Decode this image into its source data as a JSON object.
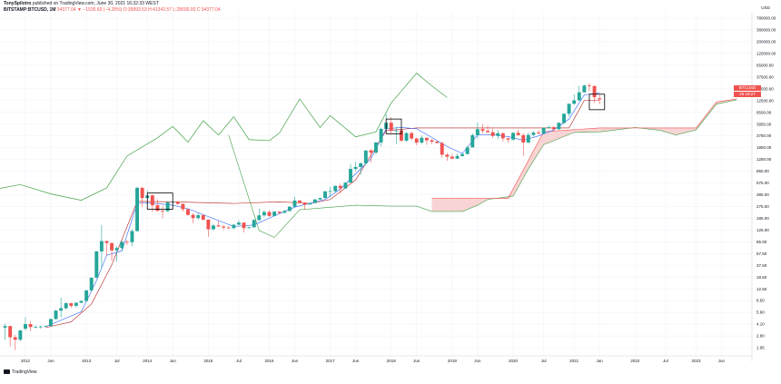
{
  "header": {
    "author": "TonySpilotro",
    "published": "published on TradingView.com, June 30, 2021 16:32:33 WEST",
    "symbol": "BITSTAMP:BTCUSD, 1M",
    "ohlc": "34377.04 ▼ −1535.69 (−4.28%) O:35893.53 H:41342.57 L:28600.00 C:34377.04"
  },
  "axis": {
    "currency": "USD",
    "y_ticks": [
      "780000.00",
      "380000.00",
      "200000.00",
      "125000.00",
      "65000.00",
      "37500.00",
      "18500.00",
      "12500.00",
      "8500.00",
      "3950.00",
      "3750.00",
      "1850.00",
      "1250.00",
      "850.00",
      "575.00",
      "395.00",
      "275.00",
      "185.00",
      "125.00",
      "85.00",
      "57.50",
      "37.50",
      "18.50",
      "12.50",
      "8.50",
      "5.90",
      "4.10",
      "2.80",
      "1.95"
    ],
    "x_ticks": [
      "2012",
      "Jun",
      "2013",
      "Jul",
      "2014",
      "Jun",
      "2015",
      "Jul",
      "2016",
      "Jun",
      "2017",
      "Jun",
      "2018",
      "Jun",
      "2019",
      "Jun",
      "2020",
      "Jul",
      "2021",
      "Jun",
      "2022",
      "Jul",
      "2023",
      "Jun"
    ]
  },
  "price_tags": [
    {
      "text": "BTCUSD 34377.04",
      "color": "#ef5350"
    },
    {
      "text": "26 19:27",
      "color": "#ef5350"
    }
  ],
  "brand": "TradingView",
  "colors": {
    "up": "#26a69a",
    "down": "#ef5350",
    "tenkan": "#2962ff",
    "kijun": "#b71c1c",
    "chikou": "#43a047",
    "span_b": "#ef5350",
    "cloud": "#f8c9c9"
  },
  "chart_data": {
    "type": "candlestick",
    "title": "",
    "scale": "log",
    "interval": "1M",
    "ylim": [
      1.6,
      1000000
    ],
    "xlim": [
      "2011-08",
      "2023-12"
    ],
    "candles": [
      [
        "2011-09",
        4.8,
        5.6,
        3.0,
        5.1
      ],
      [
        "2011-10",
        5.1,
        5.2,
        2.3,
        3.3
      ],
      [
        "2011-11",
        3.3,
        3.6,
        2.0,
        3.0
      ],
      [
        "2011-12",
        3.0,
        4.4,
        2.8,
        4.3
      ],
      [
        "2012-01",
        4.6,
        7.2,
        4.3,
        5.5
      ],
      [
        "2012-02",
        5.5,
        6.2,
        4.2,
        4.9
      ],
      [
        "2012-03",
        4.9,
        5.3,
        4.7,
        4.9
      ],
      [
        "2012-04",
        4.9,
        5.2,
        4.6,
        5.0
      ],
      [
        "2012-05",
        5.0,
        5.2,
        4.9,
        5.1
      ],
      [
        "2012-06",
        5.1,
        6.8,
        5.1,
        6.7
      ],
      [
        "2012-07",
        6.7,
        9.5,
        6.5,
        9.3
      ],
      [
        "2012-08",
        9.3,
        15.4,
        7.1,
        10.2
      ],
      [
        "2012-09",
        10.2,
        12.9,
        9.8,
        12.4
      ],
      [
        "2012-10",
        12.4,
        12.6,
        10.4,
        11.2
      ],
      [
        "2012-11",
        11.2,
        12.9,
        10.5,
        12.6
      ],
      [
        "2012-12",
        12.6,
        13.9,
        12.5,
        13.5
      ],
      [
        "2013-01",
        13.5,
        21.0,
        13.3,
        20.4
      ],
      [
        "2013-02",
        20.4,
        34.0,
        19.5,
        33.4
      ],
      [
        "2013-03",
        33.4,
        95.0,
        33.0,
        93.0
      ],
      [
        "2013-04",
        93.0,
        260,
        50,
        139
      ],
      [
        "2013-05",
        139,
        140,
        80,
        129
      ],
      [
        "2013-06",
        129,
        130,
        65,
        97
      ],
      [
        "2013-07",
        97,
        115,
        63,
        106
      ],
      [
        "2013-08",
        106,
        140,
        94,
        135
      ],
      [
        "2013-09",
        135,
        145,
        118,
        133
      ],
      [
        "2013-10",
        133,
        220,
        113,
        205
      ],
      [
        "2013-11",
        205,
        1160,
        200,
        1100
      ],
      [
        "2013-12",
        1100,
        1150,
        520,
        740
      ],
      [
        "2014-01",
        740,
        1000,
        740,
        820
      ],
      [
        "2014-02",
        820,
        850,
        430,
        560
      ],
      [
        "2014-03",
        560,
        700,
        440,
        450
      ],
      [
        "2014-04",
        450,
        550,
        340,
        445
      ],
      [
        "2014-05",
        445,
        640,
        430,
        630
      ],
      [
        "2014-06",
        630,
        680,
        550,
        640
      ],
      [
        "2014-07",
        640,
        660,
        570,
        590
      ],
      [
        "2014-08",
        590,
        600,
        440,
        480
      ],
      [
        "2014-09",
        480,
        490,
        370,
        385
      ],
      [
        "2014-10",
        385,
        410,
        280,
        340
      ],
      [
        "2014-11",
        340,
        420,
        320,
        380
      ],
      [
        "2014-12",
        380,
        390,
        310,
        320
      ],
      [
        "2015-01",
        320,
        320,
        165,
        220
      ],
      [
        "2015-02",
        220,
        270,
        210,
        255
      ],
      [
        "2015-03",
        255,
        300,
        240,
        245
      ],
      [
        "2015-04",
        245,
        260,
        215,
        235
      ],
      [
        "2015-05",
        235,
        250,
        225,
        230
      ],
      [
        "2015-06",
        230,
        265,
        220,
        263
      ],
      [
        "2015-07",
        263,
        315,
        255,
        285
      ],
      [
        "2015-08",
        285,
        290,
        195,
        230
      ],
      [
        "2015-09",
        230,
        245,
        225,
        237
      ],
      [
        "2015-10",
        237,
        330,
        236,
        315
      ],
      [
        "2015-11",
        315,
        495,
        305,
        378
      ],
      [
        "2015-12",
        378,
        465,
        350,
        430
      ],
      [
        "2016-01",
        430,
        460,
        355,
        370
      ],
      [
        "2016-02",
        370,
        445,
        365,
        437
      ],
      [
        "2016-03",
        437,
        440,
        400,
        416
      ],
      [
        "2016-04",
        416,
        470,
        415,
        448
      ],
      [
        "2016-05",
        448,
        540,
        440,
        530
      ],
      [
        "2016-06",
        530,
        780,
        520,
        673
      ],
      [
        "2016-07",
        673,
        680,
        600,
        624
      ],
      [
        "2016-08",
        624,
        615,
        470,
        575
      ],
      [
        "2016-09",
        575,
        615,
        590,
        608
      ],
      [
        "2016-10",
        608,
        720,
        605,
        700
      ],
      [
        "2016-11",
        700,
        750,
        695,
        740
      ],
      [
        "2016-12",
        740,
        975,
        740,
        960
      ],
      [
        "2017-01",
        960,
        1150,
        750,
        970
      ],
      [
        "2017-02",
        970,
        1200,
        915,
        1190
      ],
      [
        "2017-03",
        1190,
        1300,
        890,
        1080
      ],
      [
        "2017-04",
        1080,
        1360,
        1060,
        1350
      ],
      [
        "2017-05",
        1350,
        2760,
        1350,
        2300
      ],
      [
        "2017-06",
        2300,
        3000,
        2100,
        2480
      ],
      [
        "2017-07",
        2480,
        2950,
        1830,
        2860
      ],
      [
        "2017-08",
        2860,
        4750,
        2700,
        4700
      ],
      [
        "2017-09",
        4700,
        4980,
        2970,
        4330
      ],
      [
        "2017-10",
        4330,
        6470,
        4100,
        6440
      ],
      [
        "2017-11",
        6440,
        11400,
        5500,
        10900
      ],
      [
        "2017-12",
        10900,
        19700,
        10700,
        13850
      ],
      [
        "2018-01",
        13850,
        17200,
        9000,
        10100
      ],
      [
        "2018-02",
        10100,
        11800,
        6000,
        10300
      ],
      [
        "2018-03",
        10300,
        11700,
        6600,
        6900
      ],
      [
        "2018-04",
        6900,
        9700,
        6500,
        9250
      ],
      [
        "2018-05",
        9250,
        9900,
        7000,
        7500
      ],
      [
        "2018-06",
        7500,
        7750,
        5800,
        6400
      ],
      [
        "2018-07",
        6400,
        8500,
        6100,
        7730
      ],
      [
        "2018-08",
        7730,
        7750,
        5880,
        7000
      ],
      [
        "2018-09",
        7000,
        7400,
        6100,
        6620
      ],
      [
        "2018-10",
        6620,
        7000,
        6200,
        6300
      ],
      [
        "2018-11",
        6300,
        6550,
        3600,
        4000
      ],
      [
        "2018-12",
        4000,
        4300,
        3150,
        3700
      ],
      [
        "2019-01",
        3700,
        4100,
        3350,
        3430
      ],
      [
        "2019-02",
        3430,
        4200,
        3380,
        3800
      ],
      [
        "2019-03",
        3800,
        4150,
        3700,
        4100
      ],
      [
        "2019-04",
        4100,
        5600,
        4090,
        5300
      ],
      [
        "2019-05",
        5300,
        9100,
        5300,
        8560
      ],
      [
        "2019-06",
        8560,
        13900,
        7500,
        10800
      ],
      [
        "2019-07",
        10800,
        13200,
        9100,
        10100
      ],
      [
        "2019-08",
        10100,
        12300,
        9400,
        9600
      ],
      [
        "2019-09",
        9600,
        10950,
        7700,
        8300
      ],
      [
        "2019-10",
        8300,
        10400,
        7300,
        9200
      ],
      [
        "2019-11",
        9200,
        9500,
        6600,
        7550
      ],
      [
        "2019-12",
        7550,
        7750,
        6400,
        7200
      ],
      [
        "2020-01",
        7200,
        9600,
        6850,
        9350
      ],
      [
        "2020-02",
        9350,
        10500,
        8450,
        8540
      ],
      [
        "2020-03",
        8540,
        9200,
        3850,
        6420
      ],
      [
        "2020-04",
        6420,
        9500,
        6150,
        8630
      ],
      [
        "2020-05",
        8630,
        10080,
        8100,
        9450
      ],
      [
        "2020-06",
        9450,
        10400,
        8900,
        9140
      ],
      [
        "2020-07",
        9140,
        11480,
        8900,
        11350
      ],
      [
        "2020-08",
        11350,
        12480,
        11100,
        11650
      ],
      [
        "2020-09",
        11650,
        12100,
        9900,
        10780
      ],
      [
        "2020-10",
        10780,
        14100,
        10400,
        13800
      ],
      [
        "2020-11",
        13800,
        19500,
        13200,
        19700
      ],
      [
        "2020-12",
        19700,
        29000,
        17600,
        28950
      ],
      [
        "2021-01",
        28950,
        41950,
        28100,
        33100
      ],
      [
        "2021-02",
        33100,
        58330,
        32300,
        45200
      ],
      [
        "2021-03",
        45200,
        61780,
        44900,
        58800
      ],
      [
        "2021-04",
        58800,
        64900,
        47000,
        57700
      ],
      [
        "2021-05",
        57700,
        59500,
        30000,
        37300
      ],
      [
        "2021-06",
        35893.53,
        41342.57,
        28600.0,
        34377.04
      ]
    ],
    "ichimoku": {
      "tenkan": [
        [
          "2012-05",
          5.0
        ],
        [
          "2012-12",
          8.9
        ],
        [
          "2013-03",
          30
        ],
        [
          "2013-05",
          80
        ],
        [
          "2013-08",
          95
        ],
        [
          "2013-11",
          600
        ],
        [
          "2014-01",
          620
        ],
        [
          "2014-06",
          560
        ],
        [
          "2014-09",
          490
        ],
        [
          "2015-01",
          360
        ],
        [
          "2015-06",
          245
        ],
        [
          "2015-10",
          260
        ],
        [
          "2016-01",
          340
        ],
        [
          "2016-06",
          520
        ],
        [
          "2016-12",
          700
        ],
        [
          "2017-03",
          1050
        ],
        [
          "2017-06",
          1900
        ],
        [
          "2017-09",
          3400
        ],
        [
          "2017-12",
          11000
        ],
        [
          "2018-03",
          11500
        ],
        [
          "2018-06",
          11000
        ],
        [
          "2018-09",
          7800
        ],
        [
          "2018-12",
          5500
        ],
        [
          "2019-03",
          4200
        ],
        [
          "2019-06",
          8600
        ],
        [
          "2019-09",
          8700
        ],
        [
          "2019-12",
          8100
        ],
        [
          "2020-03",
          7000
        ],
        [
          "2020-06",
          8300
        ],
        [
          "2020-09",
          10500
        ],
        [
          "2020-12",
          16000
        ],
        [
          "2021-03",
          41000
        ],
        [
          "2021-06",
          44000
        ]
      ],
      "kijun": [
        [
          "2012-05",
          4.8
        ],
        [
          "2012-10",
          6.0
        ],
        [
          "2013-02",
          12
        ],
        [
          "2013-06",
          55
        ],
        [
          "2013-11",
          650
        ],
        [
          "2014-06",
          640
        ],
        [
          "2015-06",
          600
        ],
        [
          "2016-03",
          640
        ],
        [
          "2016-09",
          600
        ],
        [
          "2017-01",
          700
        ],
        [
          "2017-06",
          1500
        ],
        [
          "2017-12",
          10200
        ],
        [
          "2018-06",
          11300
        ],
        [
          "2019-06",
          11300
        ],
        [
          "2020-06",
          11300
        ],
        [
          "2020-12",
          11300
        ],
        [
          "2021-03",
          33000
        ],
        [
          "2021-06",
          33000
        ]
      ],
      "chikou": [
        [
          "2011-08",
          1080
        ],
        [
          "2011-12",
          1250
        ],
        [
          "2012-06",
          870
        ],
        [
          "2012-12",
          680
        ],
        [
          "2013-05",
          1100
        ],
        [
          "2013-09",
          3800
        ],
        [
          "2014-03",
          7700
        ],
        [
          "2014-06",
          12000
        ],
        [
          "2014-09",
          6500
        ],
        [
          "2014-12",
          15000
        ],
        [
          "2015-03",
          8600
        ],
        [
          "2015-06",
          17500
        ],
        [
          "2015-09",
          7200
        ],
        [
          "2016-01",
          6900
        ],
        [
          "2016-03",
          9300
        ],
        [
          "2016-07",
          35000
        ],
        [
          "2016-11",
          11500
        ],
        [
          "2017-01",
          18300
        ],
        [
          "2017-06",
          8000
        ],
        [
          "2017-10",
          9700
        ],
        [
          "2018-01",
          30000
        ],
        [
          "2018-06",
          95000
        ],
        [
          "2018-09",
          58000
        ],
        [
          "2018-12",
          37000
        ]
      ],
      "span_a": [
        [
          "2015-05",
          8600
        ],
        [
          "2015-11",
          210
        ],
        [
          "2016-02",
          160
        ],
        [
          "2016-07",
          470
        ],
        [
          "2017-06",
          560
        ],
        [
          "2018-01",
          540
        ],
        [
          "2018-06",
          540
        ],
        [
          "2018-09",
          440
        ],
        [
          "2019-03",
          440
        ],
        [
          "2019-06",
          560
        ],
        [
          "2019-08",
          700
        ],
        [
          "2020-01",
          800
        ],
        [
          "2020-04",
          2300
        ],
        [
          "2020-07",
          5900
        ],
        [
          "2021-01",
          9500
        ],
        [
          "2021-06",
          9700
        ],
        [
          "2022-01",
          11500
        ],
        [
          "2022-06",
          10300
        ],
        [
          "2022-09",
          8600
        ],
        [
          "2023-01",
          10500
        ],
        [
          "2023-05",
          28500
        ],
        [
          "2023-09",
          34000
        ]
      ],
      "span_b": [
        [
          "2018-09",
          730
        ],
        [
          "2019-12",
          730
        ],
        [
          "2020-03",
          2200
        ],
        [
          "2020-07",
          9800
        ],
        [
          "2021-06",
          11300
        ],
        [
          "2022-06",
          11300
        ],
        [
          "2023-01",
          11300
        ],
        [
          "2023-05",
          31000
        ],
        [
          "2023-09",
          35000
        ]
      ]
    },
    "annotations": [
      {
        "type": "rect",
        "x0": "2014-01",
        "x1": "2014-06",
        "y0": 480,
        "y1": 900
      },
      {
        "type": "rect",
        "x0": "2017-12",
        "x1": "2018-03",
        "y0": 9000,
        "y1": 16000
      },
      {
        "type": "rect",
        "x0": "2021-04",
        "x1": "2021-07",
        "y0": 23000,
        "y1": 42000
      }
    ]
  }
}
